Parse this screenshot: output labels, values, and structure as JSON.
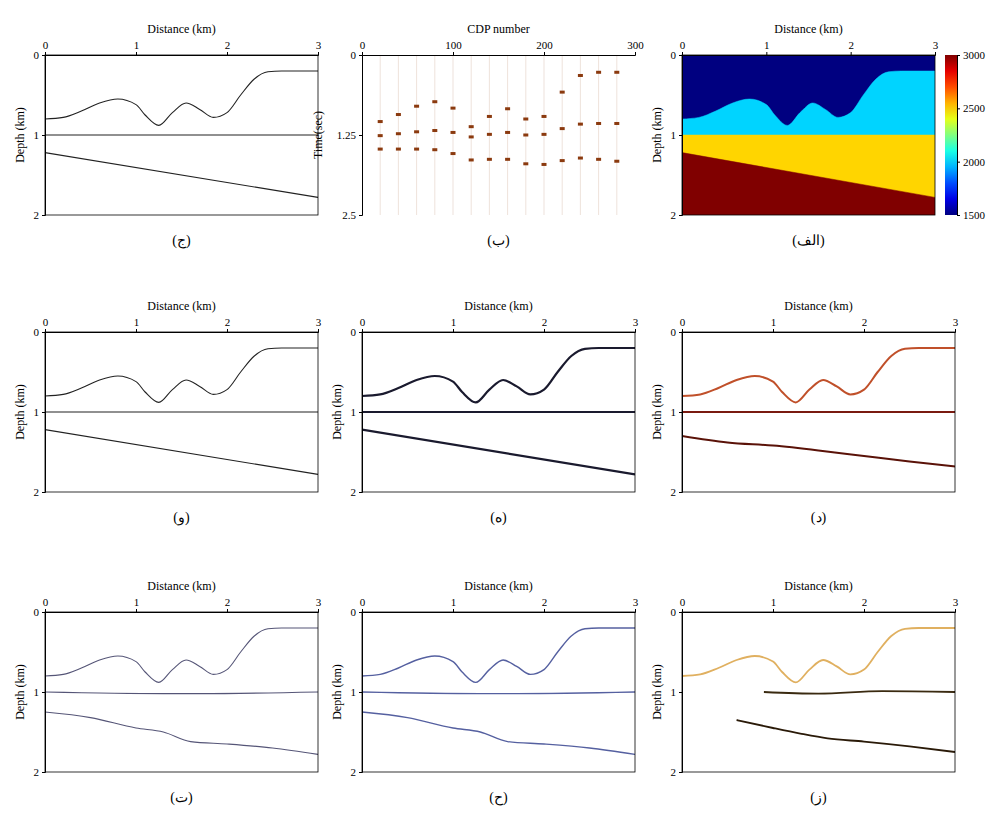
{
  "chart_data": [
    {
      "type": "heatmap",
      "title": "(الف)",
      "xlabel": "Distance (km)",
      "ylabel": "Depth (km)",
      "xlim": [
        0,
        3
      ],
      "ylim": [
        0,
        2
      ],
      "xticks": [
        0,
        1,
        2,
        3
      ],
      "yticks": [
        0,
        1,
        2
      ],
      "velocities": [
        1500,
        2000,
        2500,
        3000
      ],
      "interfaces": [
        {
          "x": [
            0,
            0.2,
            0.4,
            0.6,
            0.8,
            1.0,
            1.1,
            1.25,
            1.4,
            1.55,
            1.7,
            1.85,
            2.0,
            2.15,
            2.3,
            2.45,
            2.6,
            3.0
          ],
          "values": [
            0.8,
            0.78,
            0.7,
            0.6,
            0.55,
            0.62,
            0.75,
            0.88,
            0.72,
            0.6,
            0.68,
            0.78,
            0.72,
            0.5,
            0.3,
            0.21,
            0.2,
            0.2
          ]
        },
        {
          "x": [
            0,
            3
          ],
          "values": [
            1.0,
            1.0
          ]
        },
        {
          "x": [
            0,
            3
          ],
          "values": [
            1.22,
            1.78
          ]
        }
      ],
      "color_range": [
        1500,
        3000
      ],
      "color_ticks": [
        1500,
        2000,
        2500,
        3000
      ]
    },
    {
      "type": "scatter",
      "title": "(ب)",
      "xlabel": "CDP number",
      "ylabel": "Time(sec)",
      "xlim": [
        0,
        300
      ],
      "ylim": [
        0,
        2.5
      ],
      "xticks": [
        0,
        100,
        200,
        300
      ],
      "yticks": [
        0,
        1.25,
        2.5
      ],
      "marker": "dash",
      "color": "#8b3a0f",
      "x": [
        20,
        40,
        60,
        80,
        100,
        120,
        140,
        160,
        180,
        200,
        220,
        240,
        260,
        280
      ],
      "series": [
        {
          "values": [
            1.04,
            0.93,
            0.8,
            0.73,
            0.83,
            1.12,
            0.96,
            0.84,
            1.0,
            0.96,
            0.58,
            0.32,
            0.27,
            0.27
          ]
        },
        {
          "values": [
            1.26,
            1.23,
            1.2,
            1.18,
            1.21,
            1.28,
            1.24,
            1.21,
            1.25,
            1.24,
            1.15,
            1.08,
            1.07,
            1.07
          ]
        },
        {
          "values": [
            1.47,
            1.47,
            1.47,
            1.48,
            1.54,
            1.64,
            1.63,
            1.63,
            1.7,
            1.71,
            1.65,
            1.61,
            1.63,
            1.66
          ]
        }
      ]
    },
    {
      "type": "line",
      "title": "(ج)",
      "xlabel": "Distance (km)",
      "ylabel": "Depth (km)",
      "xlim": [
        0,
        3
      ],
      "ylim": [
        0,
        2
      ],
      "xticks": [
        0,
        1,
        2,
        3
      ],
      "yticks": [
        0,
        1,
        2
      ],
      "series": [
        {
          "color": "#222222",
          "x": [
            0,
            0.2,
            0.4,
            0.6,
            0.8,
            1.0,
            1.1,
            1.25,
            1.4,
            1.55,
            1.7,
            1.85,
            2.0,
            2.15,
            2.3,
            2.45,
            2.6,
            3.0
          ],
          "values": [
            0.8,
            0.78,
            0.7,
            0.6,
            0.55,
            0.62,
            0.75,
            0.88,
            0.72,
            0.6,
            0.68,
            0.78,
            0.72,
            0.5,
            0.3,
            0.21,
            0.2,
            0.2
          ]
        },
        {
          "color": "#222222",
          "x": [
            0,
            3
          ],
          "values": [
            1.0,
            1.0
          ]
        },
        {
          "color": "#222222",
          "x": [
            0,
            3
          ],
          "values": [
            1.22,
            1.78
          ]
        }
      ]
    },
    {
      "type": "line",
      "title": "(د)",
      "xlabel": "Distance (km)",
      "ylabel": "Depth (km)",
      "xlim": [
        0,
        3
      ],
      "ylim": [
        0,
        2
      ],
      "xticks": [
        0,
        1,
        2,
        3
      ],
      "yticks": [
        0,
        1,
        2
      ],
      "series": [
        {
          "color": "#c0502a",
          "x": [
            0,
            0.2,
            0.4,
            0.6,
            0.8,
            1.0,
            1.1,
            1.25,
            1.4,
            1.55,
            1.7,
            1.85,
            2.0,
            2.15,
            2.3,
            2.45,
            2.6,
            3.0
          ],
          "values": [
            0.8,
            0.78,
            0.7,
            0.6,
            0.55,
            0.62,
            0.75,
            0.88,
            0.72,
            0.6,
            0.68,
            0.78,
            0.72,
            0.5,
            0.3,
            0.21,
            0.2,
            0.2
          ]
        },
        {
          "color": "#7a1a10",
          "x": [
            0,
            3
          ],
          "values": [
            1.0,
            1.0
          ]
        },
        {
          "color": "#5a1208",
          "x": [
            0,
            0.5,
            1.0,
            1.5,
            2.0,
            2.5,
            3.0
          ],
          "values": [
            1.3,
            1.38,
            1.42,
            1.48,
            1.55,
            1.62,
            1.68
          ]
        }
      ]
    },
    {
      "type": "line",
      "title": "(ه)",
      "xlabel": "Distance (km)",
      "ylabel": "Depth (km)",
      "xlim": [
        0,
        3
      ],
      "ylim": [
        0,
        2
      ],
      "xticks": [
        0,
        1,
        2,
        3
      ],
      "yticks": [
        0,
        1,
        2
      ],
      "series": [
        {
          "color": "#1a1a2e",
          "x": [
            0,
            0.2,
            0.4,
            0.6,
            0.8,
            1.0,
            1.1,
            1.25,
            1.4,
            1.55,
            1.7,
            1.85,
            2.0,
            2.15,
            2.3,
            2.45,
            2.6,
            3.0
          ],
          "values": [
            0.8,
            0.78,
            0.7,
            0.6,
            0.55,
            0.62,
            0.75,
            0.88,
            0.72,
            0.6,
            0.68,
            0.78,
            0.72,
            0.5,
            0.3,
            0.21,
            0.2,
            0.2
          ]
        },
        {
          "color": "#1a1a2e",
          "x": [
            0,
            3
          ],
          "values": [
            1.0,
            1.0
          ]
        },
        {
          "color": "#1a1a2e",
          "x": [
            0,
            3
          ],
          "values": [
            1.22,
            1.78
          ]
        }
      ]
    },
    {
      "type": "line",
      "title": "(و)",
      "xlabel": "Distance (km)",
      "ylabel": "Depth (km)",
      "xlim": [
        0,
        3
      ],
      "ylim": [
        0,
        2
      ],
      "xticks": [
        0,
        1,
        2,
        3
      ],
      "yticks": [
        0,
        1,
        2
      ],
      "series": [
        {
          "color": "#222222",
          "x": [
            0,
            0.2,
            0.4,
            0.6,
            0.8,
            1.0,
            1.1,
            1.25,
            1.4,
            1.55,
            1.7,
            1.85,
            2.0,
            2.15,
            2.3,
            2.45,
            2.6,
            3.0
          ],
          "values": [
            0.8,
            0.78,
            0.7,
            0.6,
            0.55,
            0.62,
            0.75,
            0.88,
            0.72,
            0.6,
            0.68,
            0.78,
            0.72,
            0.5,
            0.3,
            0.21,
            0.2,
            0.2
          ]
        },
        {
          "color": "#222222",
          "x": [
            0,
            3
          ],
          "values": [
            1.0,
            1.0
          ]
        },
        {
          "color": "#222222",
          "x": [
            0,
            3
          ],
          "values": [
            1.22,
            1.78
          ]
        }
      ]
    },
    {
      "type": "line",
      "title": "(ز)",
      "xlabel": "Distance (km)",
      "ylabel": "Depth (km)",
      "xlim": [
        0,
        3
      ],
      "ylim": [
        0,
        2
      ],
      "xticks": [
        0,
        1,
        2,
        3
      ],
      "yticks": [
        0,
        1,
        2
      ],
      "series": [
        {
          "color": "#e0b060",
          "x": [
            0,
            0.2,
            0.4,
            0.6,
            0.8,
            1.0,
            1.1,
            1.25,
            1.4,
            1.55,
            1.7,
            1.85,
            2.0,
            2.15,
            2.3,
            2.45,
            2.6,
            3.0
          ],
          "values": [
            0.8,
            0.78,
            0.7,
            0.6,
            0.55,
            0.62,
            0.75,
            0.88,
            0.72,
            0.6,
            0.68,
            0.78,
            0.72,
            0.5,
            0.3,
            0.21,
            0.2,
            0.2
          ]
        },
        {
          "color": "#3a2a10",
          "x": [
            0.9,
            1.5,
            2.2,
            3.0
          ],
          "values": [
            1.0,
            1.02,
            0.99,
            1.0
          ]
        },
        {
          "color": "#2a1a08",
          "x": [
            0.6,
            1.0,
            1.3,
            1.6,
            2.0,
            2.5,
            3.0
          ],
          "values": [
            1.35,
            1.45,
            1.52,
            1.58,
            1.62,
            1.68,
            1.75
          ]
        }
      ]
    },
    {
      "type": "line",
      "title": "(ح)",
      "xlabel": "Distance (km)",
      "ylabel": "Depth (km)",
      "xlim": [
        0,
        3
      ],
      "ylim": [
        0,
        2
      ],
      "xticks": [
        0,
        1,
        2,
        3
      ],
      "yticks": [
        0,
        1,
        2
      ],
      "series": [
        {
          "color": "#5560a0",
          "x": [
            0,
            0.2,
            0.4,
            0.6,
            0.8,
            1.0,
            1.1,
            1.25,
            1.4,
            1.55,
            1.7,
            1.85,
            2.0,
            2.15,
            2.3,
            2.45,
            2.6,
            3.0
          ],
          "values": [
            0.8,
            0.78,
            0.7,
            0.6,
            0.55,
            0.62,
            0.75,
            0.88,
            0.72,
            0.6,
            0.68,
            0.78,
            0.72,
            0.5,
            0.3,
            0.21,
            0.2,
            0.2
          ]
        },
        {
          "color": "#5560a0",
          "x": [
            0,
            1.3,
            1.7,
            3.0
          ],
          "values": [
            1.0,
            1.02,
            1.02,
            1.0
          ]
        },
        {
          "color": "#5560a0",
          "x": [
            0,
            0.5,
            1.0,
            1.3,
            1.6,
            2.0,
            2.5,
            3.0
          ],
          "values": [
            1.25,
            1.32,
            1.45,
            1.5,
            1.62,
            1.65,
            1.7,
            1.78
          ]
        }
      ]
    },
    {
      "type": "line",
      "title": "(ت)",
      "xlabel": "Distance (km)",
      "ylabel": "Depth (km)",
      "xlim": [
        0,
        3
      ],
      "ylim": [
        0,
        2
      ],
      "xticks": [
        0,
        1,
        2,
        3
      ],
      "yticks": [
        0,
        1,
        2
      ],
      "series": [
        {
          "color": "#555577",
          "x": [
            0,
            0.2,
            0.4,
            0.6,
            0.8,
            1.0,
            1.1,
            1.25,
            1.4,
            1.55,
            1.7,
            1.85,
            2.0,
            2.15,
            2.3,
            2.45,
            2.6,
            3.0
          ],
          "values": [
            0.8,
            0.78,
            0.7,
            0.6,
            0.55,
            0.62,
            0.75,
            0.88,
            0.72,
            0.6,
            0.68,
            0.78,
            0.72,
            0.5,
            0.3,
            0.21,
            0.2,
            0.2
          ]
        },
        {
          "color": "#555577",
          "x": [
            0,
            1.3,
            1.7,
            3.0
          ],
          "values": [
            1.0,
            1.02,
            1.02,
            1.0
          ]
        },
        {
          "color": "#555577",
          "x": [
            0,
            0.5,
            1.0,
            1.3,
            1.6,
            2.0,
            2.5,
            3.0
          ],
          "values": [
            1.25,
            1.32,
            1.45,
            1.5,
            1.62,
            1.65,
            1.7,
            1.78
          ]
        }
      ]
    }
  ]
}
